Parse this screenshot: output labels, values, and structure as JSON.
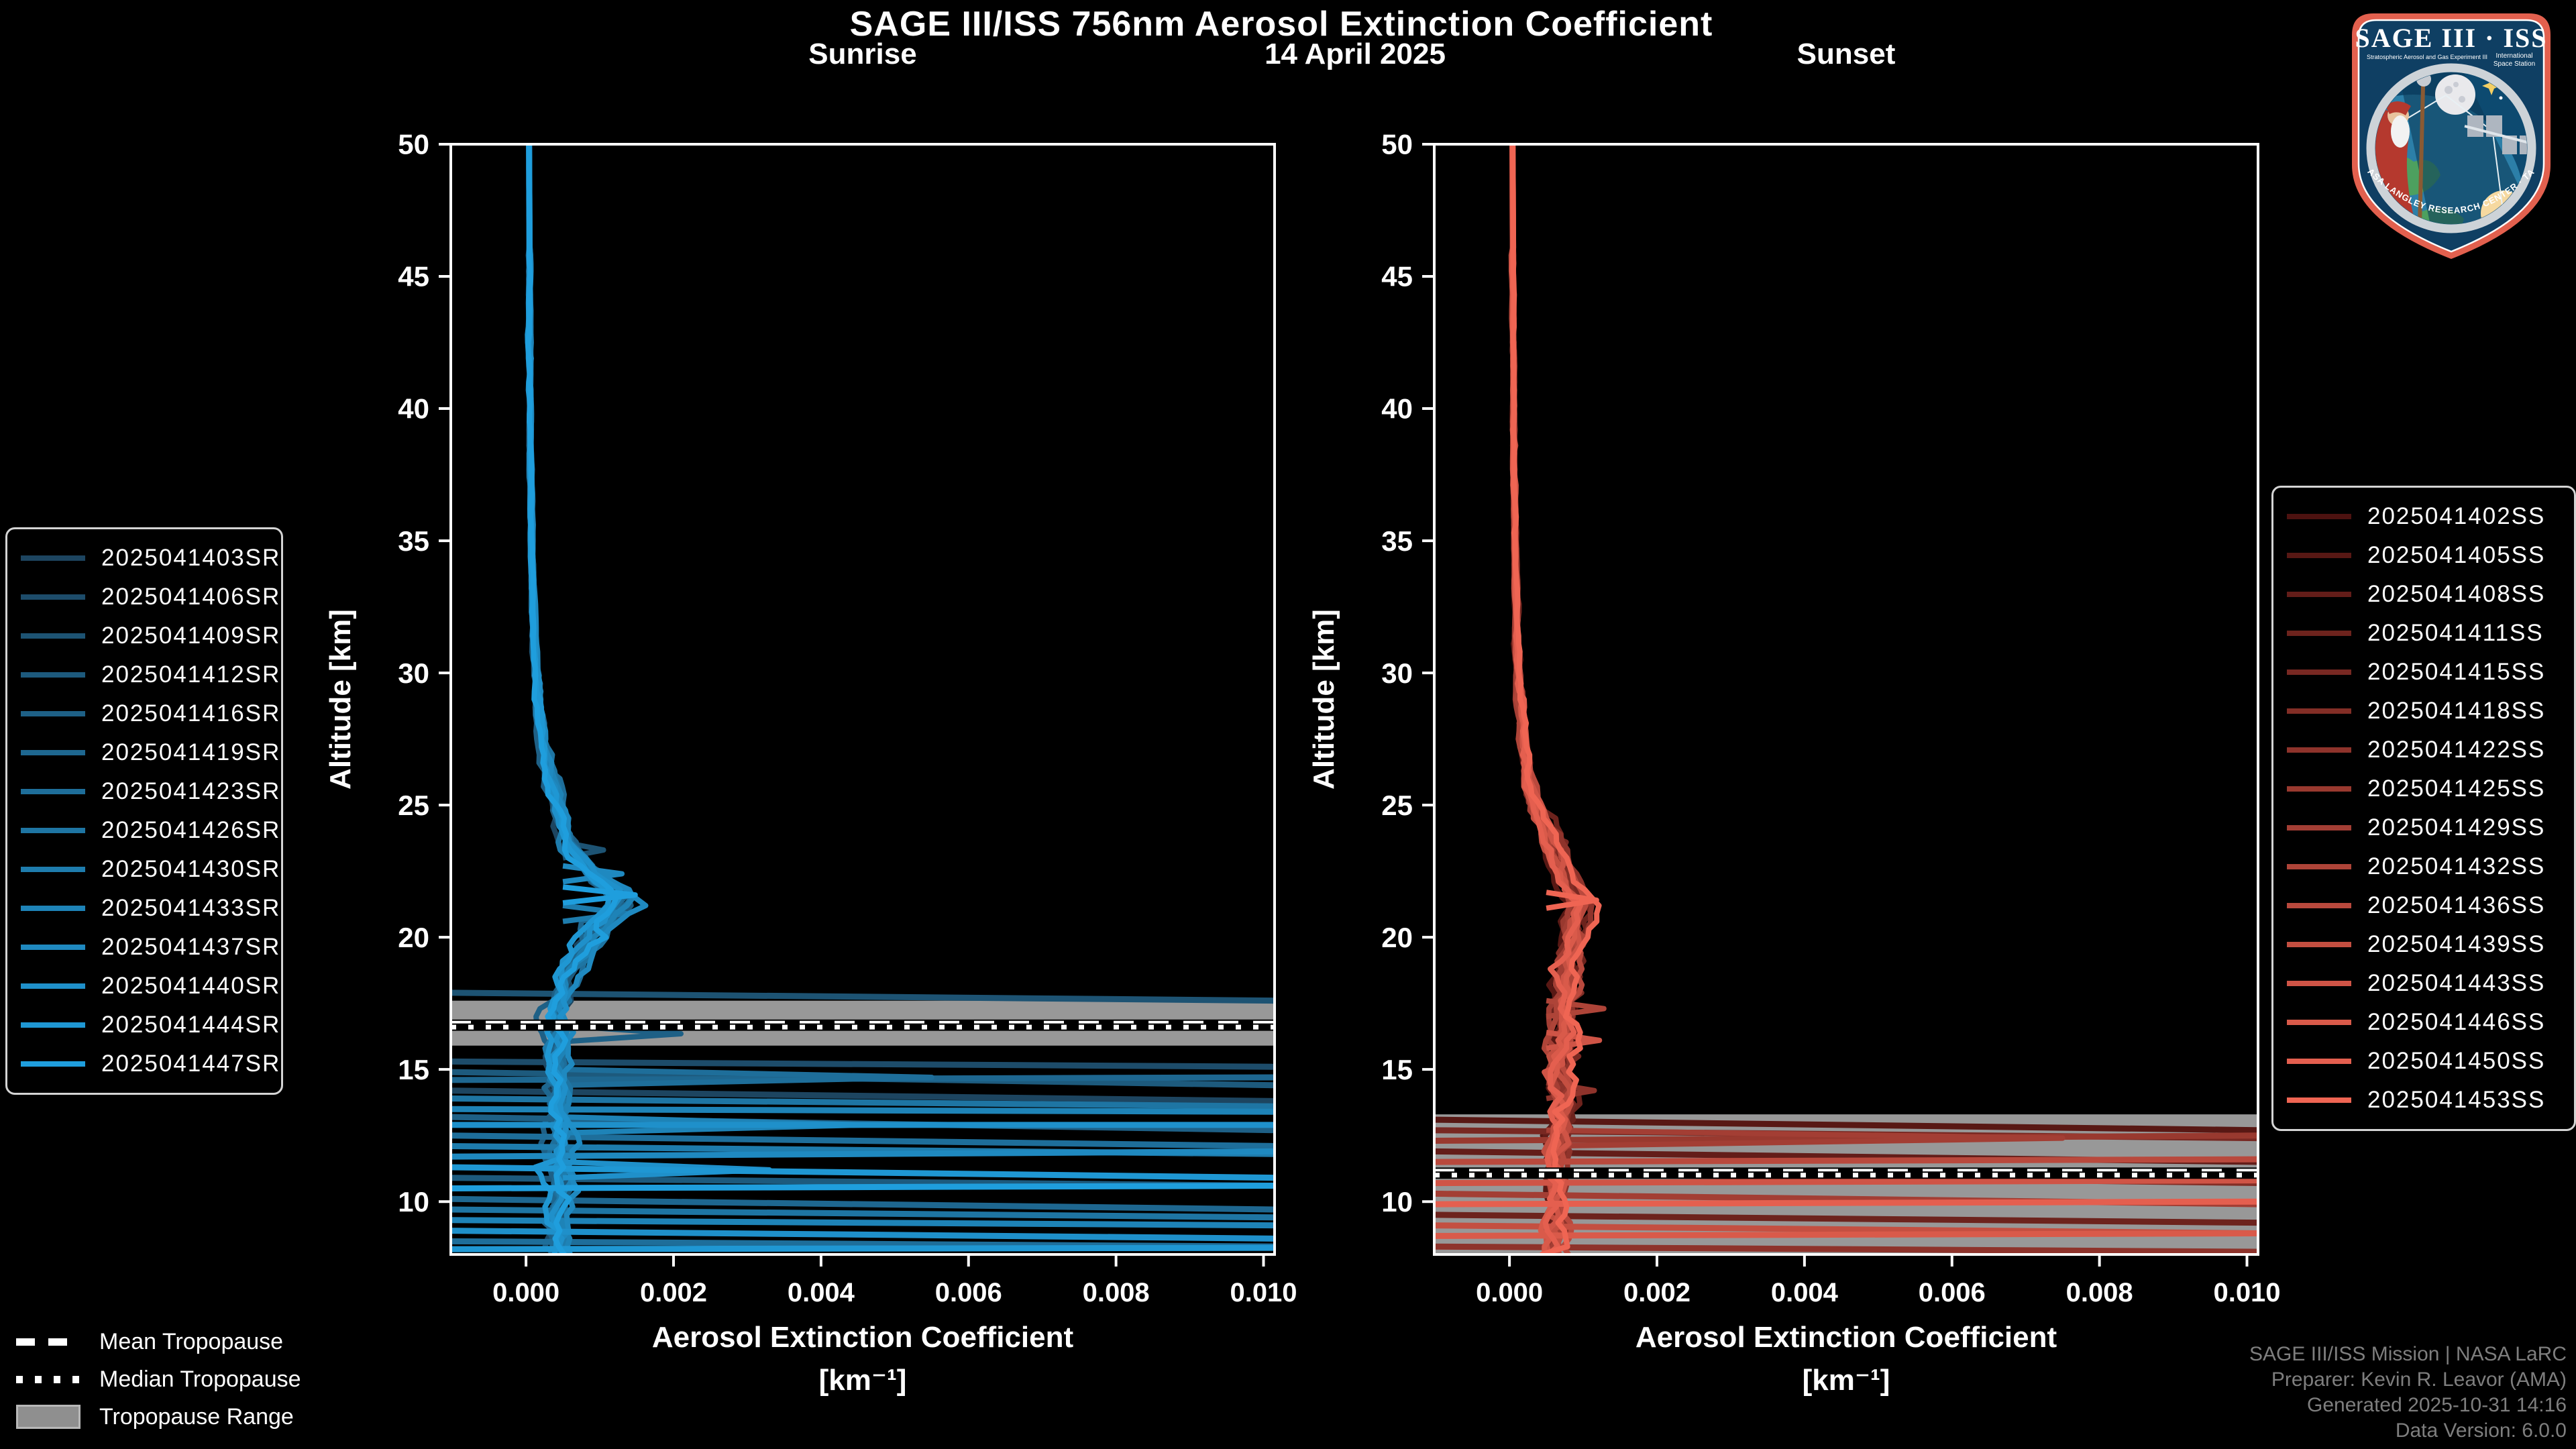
{
  "header": {
    "title": "SAGE III/ISS 756nm Aerosol Extinction Coefficient",
    "date": "14 April 2025",
    "sunrise_title": "Sunrise",
    "sunset_title": "Sunset"
  },
  "logo": {
    "title": "SAGE III · ISS",
    "subtitle_left": "Stratospheric Aerosol and Gas Experiment III",
    "subtitle_right1": "International",
    "subtitle_right2": "Space Station",
    "footer": "BALL · NASA LANGLEY RESEARCH CENTER · TAS-I · ESA"
  },
  "tropopause_legend": {
    "mean": "Mean Tropopause",
    "median": "Median Tropopause",
    "range": "Tropopause Range"
  },
  "attribution": {
    "line1": "SAGE III/ISS Mission | NASA LaRC",
    "line2": "Preparer: Kevin R. Leavor (AMA)",
    "line3": "Generated 2025-10-31 14:16",
    "line4": "Data Version: 6.0.0"
  },
  "colors": {
    "background": "#000000",
    "spine": "#ffffff",
    "tropopause_band": "#989898",
    "legend_border": "#d4d4d4",
    "attribution_text": "#7e7e7e",
    "sunrise_color_start": "#1d4560",
    "sunrise_color_end": "#1f9edd",
    "sunset_color_start": "#4d1210",
    "sunset_color_end": "#ef6553"
  },
  "chart_data": [
    {
      "type": "line",
      "panel": "sunrise",
      "title": "Sunrise",
      "xlabel": "Aerosol Extinction Coefficient",
      "xlabel_units": "[km⁻¹]",
      "ylabel": "Altitude [km]",
      "xlim": [
        -0.00102,
        0.01015
      ],
      "ylim": [
        8,
        50
      ],
      "xticks": [
        0.0,
        0.002,
        0.004,
        0.006,
        0.008,
        0.01
      ],
      "xticklabels": [
        "0.000",
        "0.002",
        "0.004",
        "0.006",
        "0.008",
        "0.010"
      ],
      "yticks": [
        10,
        15,
        20,
        25,
        30,
        35,
        40,
        45,
        50
      ],
      "legend_position": "outside-left",
      "grid": false,
      "color_start": "#1d4560",
      "color_end": "#1f9edd",
      "seed": 11,
      "series_names": [
        "2025041403SR",
        "2025041406SR",
        "2025041409SR",
        "2025041412SR",
        "2025041416SR",
        "2025041419SR",
        "2025041423SR",
        "2025041426SR",
        "2025041430SR",
        "2025041433SR",
        "2025041437SR",
        "2025041440SR",
        "2025041444SR",
        "2025041447SR"
      ],
      "base_profile": [
        [
          50,
          4e-05
        ],
        [
          44,
          5e-05
        ],
        [
          38,
          6e-05
        ],
        [
          34,
          8e-05
        ],
        [
          31,
          0.00011
        ],
        [
          29,
          0.00016
        ],
        [
          27,
          0.00024
        ],
        [
          25.5,
          0.00034
        ],
        [
          24.2,
          0.00048
        ],
        [
          23.2,
          0.00062
        ],
        [
          22.4,
          0.00088
        ],
        [
          21.8,
          0.00118
        ],
        [
          21.3,
          0.00125
        ],
        [
          20.8,
          0.00105
        ],
        [
          20.2,
          0.0009
        ],
        [
          19.4,
          0.00072
        ],
        [
          18.6,
          0.00056
        ],
        [
          17.8,
          0.00046
        ],
        [
          17,
          0.0004
        ],
        [
          16.2,
          0.00044
        ],
        [
          15.4,
          0.00038
        ],
        [
          14.4,
          0.00046
        ],
        [
          13.4,
          0.0004
        ],
        [
          12.4,
          0.00046
        ],
        [
          11.4,
          0.0004
        ],
        [
          10.4,
          0.00046
        ],
        [
          9.4,
          0.0004
        ],
        [
          8,
          0.00044
        ]
      ],
      "jitter_profile": [
        [
          50,
          1e-05
        ],
        [
          32,
          2e-05
        ],
        [
          28,
          6e-05
        ],
        [
          25,
          0.0001
        ],
        [
          22,
          0.00014
        ],
        [
          19,
          0.00016
        ],
        [
          16,
          0.00018
        ],
        [
          8,
          0.00018
        ]
      ],
      "tropopause": {
        "mean_km": 16.75,
        "median_km": 16.6,
        "range_km": [
          15.9,
          17.6
        ]
      },
      "cloud_lines": [
        {
          "s": 2,
          "a1": 17.9,
          "a2": 17.6
        },
        {
          "s": 1,
          "a1": 15.3,
          "a2": 15.1
        },
        {
          "s": 3,
          "a1": 14.9,
          "a2": 14.4
        },
        {
          "s": 5,
          "a1": 14.6,
          "a2": 14.7
        },
        {
          "s": 0,
          "a1": 14.2,
          "a2": 13.8
        },
        {
          "s": 7,
          "a1": 13.9,
          "a2": 13.6
        },
        {
          "s": 9,
          "a1": 13.5,
          "a2": 13.4
        },
        {
          "s": 4,
          "a1": 13.2,
          "a2": 12.7
        },
        {
          "s": 11,
          "a1": 12.9,
          "a2": 12.9
        },
        {
          "s": 6,
          "a1": 12.5,
          "a2": 12.1
        },
        {
          "s": 8,
          "a1": 12.1,
          "a2": 11.8
        },
        {
          "s": 10,
          "a1": 11.7,
          "a2": 11.9
        },
        {
          "s": 12,
          "a1": 11.3,
          "a2": 10.9
        },
        {
          "s": 3,
          "a1": 10.9,
          "a2": 10.6
        },
        {
          "s": 13,
          "a1": 10.5,
          "a2": 10.6
        },
        {
          "s": 5,
          "a1": 10.1,
          "a2": 9.7
        },
        {
          "s": 7,
          "a1": 9.7,
          "a2": 9.4
        },
        {
          "s": 9,
          "a1": 9.3,
          "a2": 9.1
        },
        {
          "s": 11,
          "a1": 8.9,
          "a2": 8.6
        },
        {
          "s": 6,
          "a1": 8.5,
          "a2": 8.3
        },
        {
          "s": 12,
          "a1": 8.2,
          "a2": 8.25
        }
      ],
      "spikes": [
        {
          "s": 13,
          "alt": 21.6,
          "x": 0.00148
        },
        {
          "s": 10,
          "alt": 22.4,
          "x": 0.0013
        },
        {
          "s": 8,
          "alt": 20.9,
          "x": 0.00135
        },
        {
          "s": 4,
          "alt": 16.35,
          "x": 0.0021
        },
        {
          "s": 2,
          "alt": 23.3,
          "x": 0.00105
        },
        {
          "s": 6,
          "alt": 14.7,
          "x": 0.0055
        },
        {
          "s": 9,
          "alt": 12.9,
          "x": 0.0046
        },
        {
          "s": 11,
          "alt": 11.2,
          "x": 0.0033
        }
      ]
    },
    {
      "type": "line",
      "panel": "sunset",
      "title": "Sunset",
      "xlabel": "Aerosol Extinction Coefficient",
      "xlabel_units": "[km⁻¹]",
      "ylabel": "Altitude [km]",
      "xlim": [
        -0.00102,
        0.01015
      ],
      "ylim": [
        8,
        50
      ],
      "xticks": [
        0.0,
        0.002,
        0.004,
        0.006,
        0.008,
        0.01
      ],
      "xticklabels": [
        "0.000",
        "0.002",
        "0.004",
        "0.006",
        "0.008",
        "0.010"
      ],
      "yticks": [
        10,
        15,
        20,
        25,
        30,
        35,
        40,
        45,
        50
      ],
      "legend_position": "outside-right",
      "grid": false,
      "color_start": "#4d1210",
      "color_end": "#ef6553",
      "seed": 77,
      "series_names": [
        "2025041402SS",
        "2025041405SS",
        "2025041408SS",
        "2025041411SS",
        "2025041415SS",
        "2025041418SS",
        "2025041422SS",
        "2025041425SS",
        "2025041429SS",
        "2025041432SS",
        "2025041436SS",
        "2025041439SS",
        "2025041443SS",
        "2025041446SS",
        "2025041450SS",
        "2025041453SS"
      ],
      "base_profile": [
        [
          50,
          4e-05
        ],
        [
          44,
          5e-05
        ],
        [
          38,
          6e-05
        ],
        [
          34,
          8e-05
        ],
        [
          31,
          0.0001
        ],
        [
          29,
          0.00014
        ],
        [
          27,
          0.0002
        ],
        [
          25.5,
          0.00028
        ],
        [
          24.5,
          0.0004
        ],
        [
          23.5,
          0.00058
        ],
        [
          22.6,
          0.00072
        ],
        [
          21.8,
          0.00088
        ],
        [
          21.2,
          0.00098
        ],
        [
          20.6,
          0.0009
        ],
        [
          19.8,
          0.00084
        ],
        [
          19,
          0.0008
        ],
        [
          18.2,
          0.00076
        ],
        [
          17.4,
          0.00072
        ],
        [
          16.6,
          0.0008
        ],
        [
          15.8,
          0.00072
        ],
        [
          15,
          0.00066
        ],
        [
          14.2,
          0.0007
        ],
        [
          13.4,
          0.00072
        ],
        [
          12.6,
          0.00066
        ],
        [
          11.8,
          0.00062
        ],
        [
          11,
          0.00064
        ],
        [
          10.2,
          0.0006
        ],
        [
          9.2,
          0.00062
        ],
        [
          8,
          0.00058
        ]
      ],
      "jitter_profile": [
        [
          50,
          1e-05
        ],
        [
          32,
          2e-05
        ],
        [
          27,
          7e-05
        ],
        [
          23,
          0.00012
        ],
        [
          20,
          0.00015
        ],
        [
          17,
          0.00019
        ],
        [
          8,
          0.0002
        ]
      ],
      "tropopause": {
        "mean_km": 11.15,
        "median_km": 11.0,
        "range_km": [
          8.0,
          13.3
        ]
      },
      "cloud_lines": [
        {
          "s": 1,
          "a1": 13.1,
          "a2": 12.7
        },
        {
          "s": 4,
          "a1": 12.7,
          "a2": 12.4
        },
        {
          "s": 7,
          "a1": 12.3,
          "a2": 12.5
        },
        {
          "s": 2,
          "a1": 11.9,
          "a2": 11.5
        },
        {
          "s": 10,
          "a1": 11.5,
          "a2": 11.6
        },
        {
          "s": 5,
          "a1": 11.1,
          "a2": 10.7
        },
        {
          "s": 12,
          "a1": 10.7,
          "a2": 10.8
        },
        {
          "s": 8,
          "a1": 10.3,
          "a2": 9.9
        },
        {
          "s": 14,
          "a1": 9.9,
          "a2": 10.0
        },
        {
          "s": 3,
          "a1": 9.5,
          "a2": 9.2
        },
        {
          "s": 11,
          "a1": 9.1,
          "a2": 8.8
        },
        {
          "s": 13,
          "a1": 8.7,
          "a2": 8.8
        },
        {
          "s": 6,
          "a1": 8.3,
          "a2": 8.1
        }
      ],
      "spikes": [
        {
          "s": 15,
          "alt": 21.4,
          "x": 0.00118
        },
        {
          "s": 9,
          "alt": 17.3,
          "x": 0.00128
        },
        {
          "s": 12,
          "alt": 16.1,
          "x": 0.00122
        },
        {
          "s": 6,
          "alt": 14.2,
          "x": 0.00115
        },
        {
          "s": 8,
          "alt": 12.4,
          "x": 0.0075
        }
      ]
    }
  ]
}
